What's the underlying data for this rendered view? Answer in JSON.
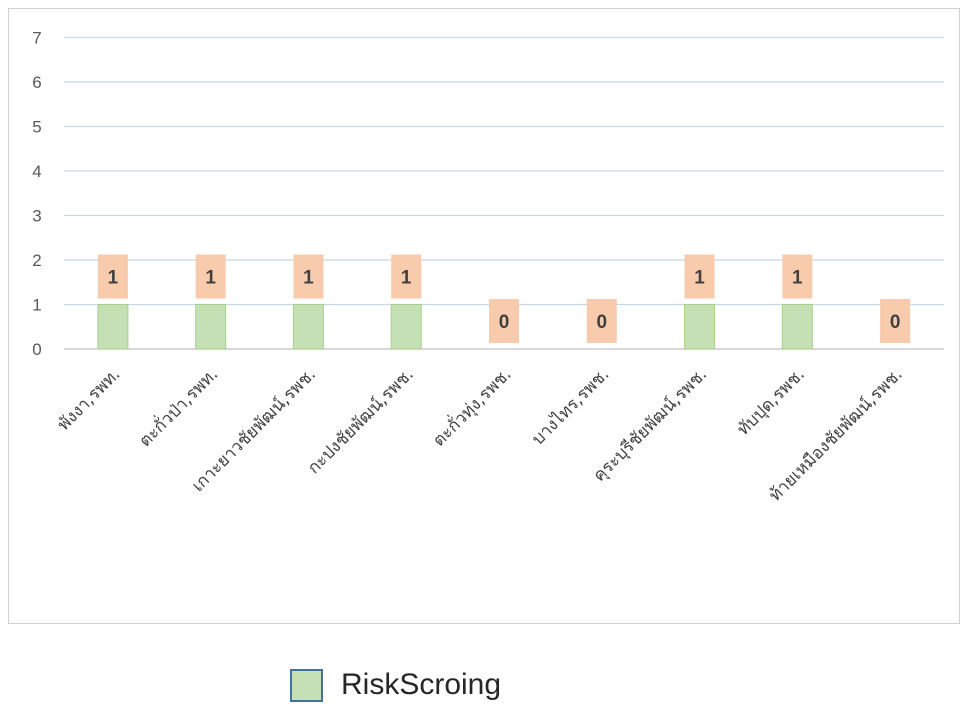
{
  "chart_data": {
    "type": "bar",
    "categories": [
      "พังงา,รพท.",
      "ตะกั่วป่า,รพท.",
      "เกาะยาวชัยพัฒน์,รพช.",
      "กะปงชัยพัฒน์,รพช.",
      "ตะกั่วทุ่ง,รพช.",
      "บางไทร,รพช.",
      "คุระบุรีชัยพัฒน์,รพช.",
      "ทับปุด,รพช.",
      "ท้ายเหมืองชัยพัฒน์,รพช."
    ],
    "series": [
      {
        "name": "RiskScroing",
        "values": [
          1,
          1,
          1,
          1,
          0,
          0,
          1,
          1,
          0
        ]
      }
    ],
    "data_labels": [
      "1",
      "1",
      "1",
      "1",
      "0",
      "0",
      "1",
      "1",
      "0"
    ],
    "y_ticks": [
      "0",
      "1",
      "2",
      "3",
      "4",
      "5",
      "6",
      "7"
    ],
    "ylim": [
      0,
      7
    ],
    "grid": true,
    "legend_position": "bottom",
    "title": "",
    "xlabel": "",
    "ylabel": ""
  },
  "colors": {
    "bar_fill": "#c5e0b4",
    "bar_stroke": "#a9d18e",
    "label_bg": "#f8cbad",
    "gridline": "#c5d7ea",
    "axis": "#bfbfbf",
    "legend_swatch_fill": "#c5e0b4",
    "legend_swatch_border": "#41719c"
  },
  "legend": {
    "label": "RiskScroing"
  }
}
